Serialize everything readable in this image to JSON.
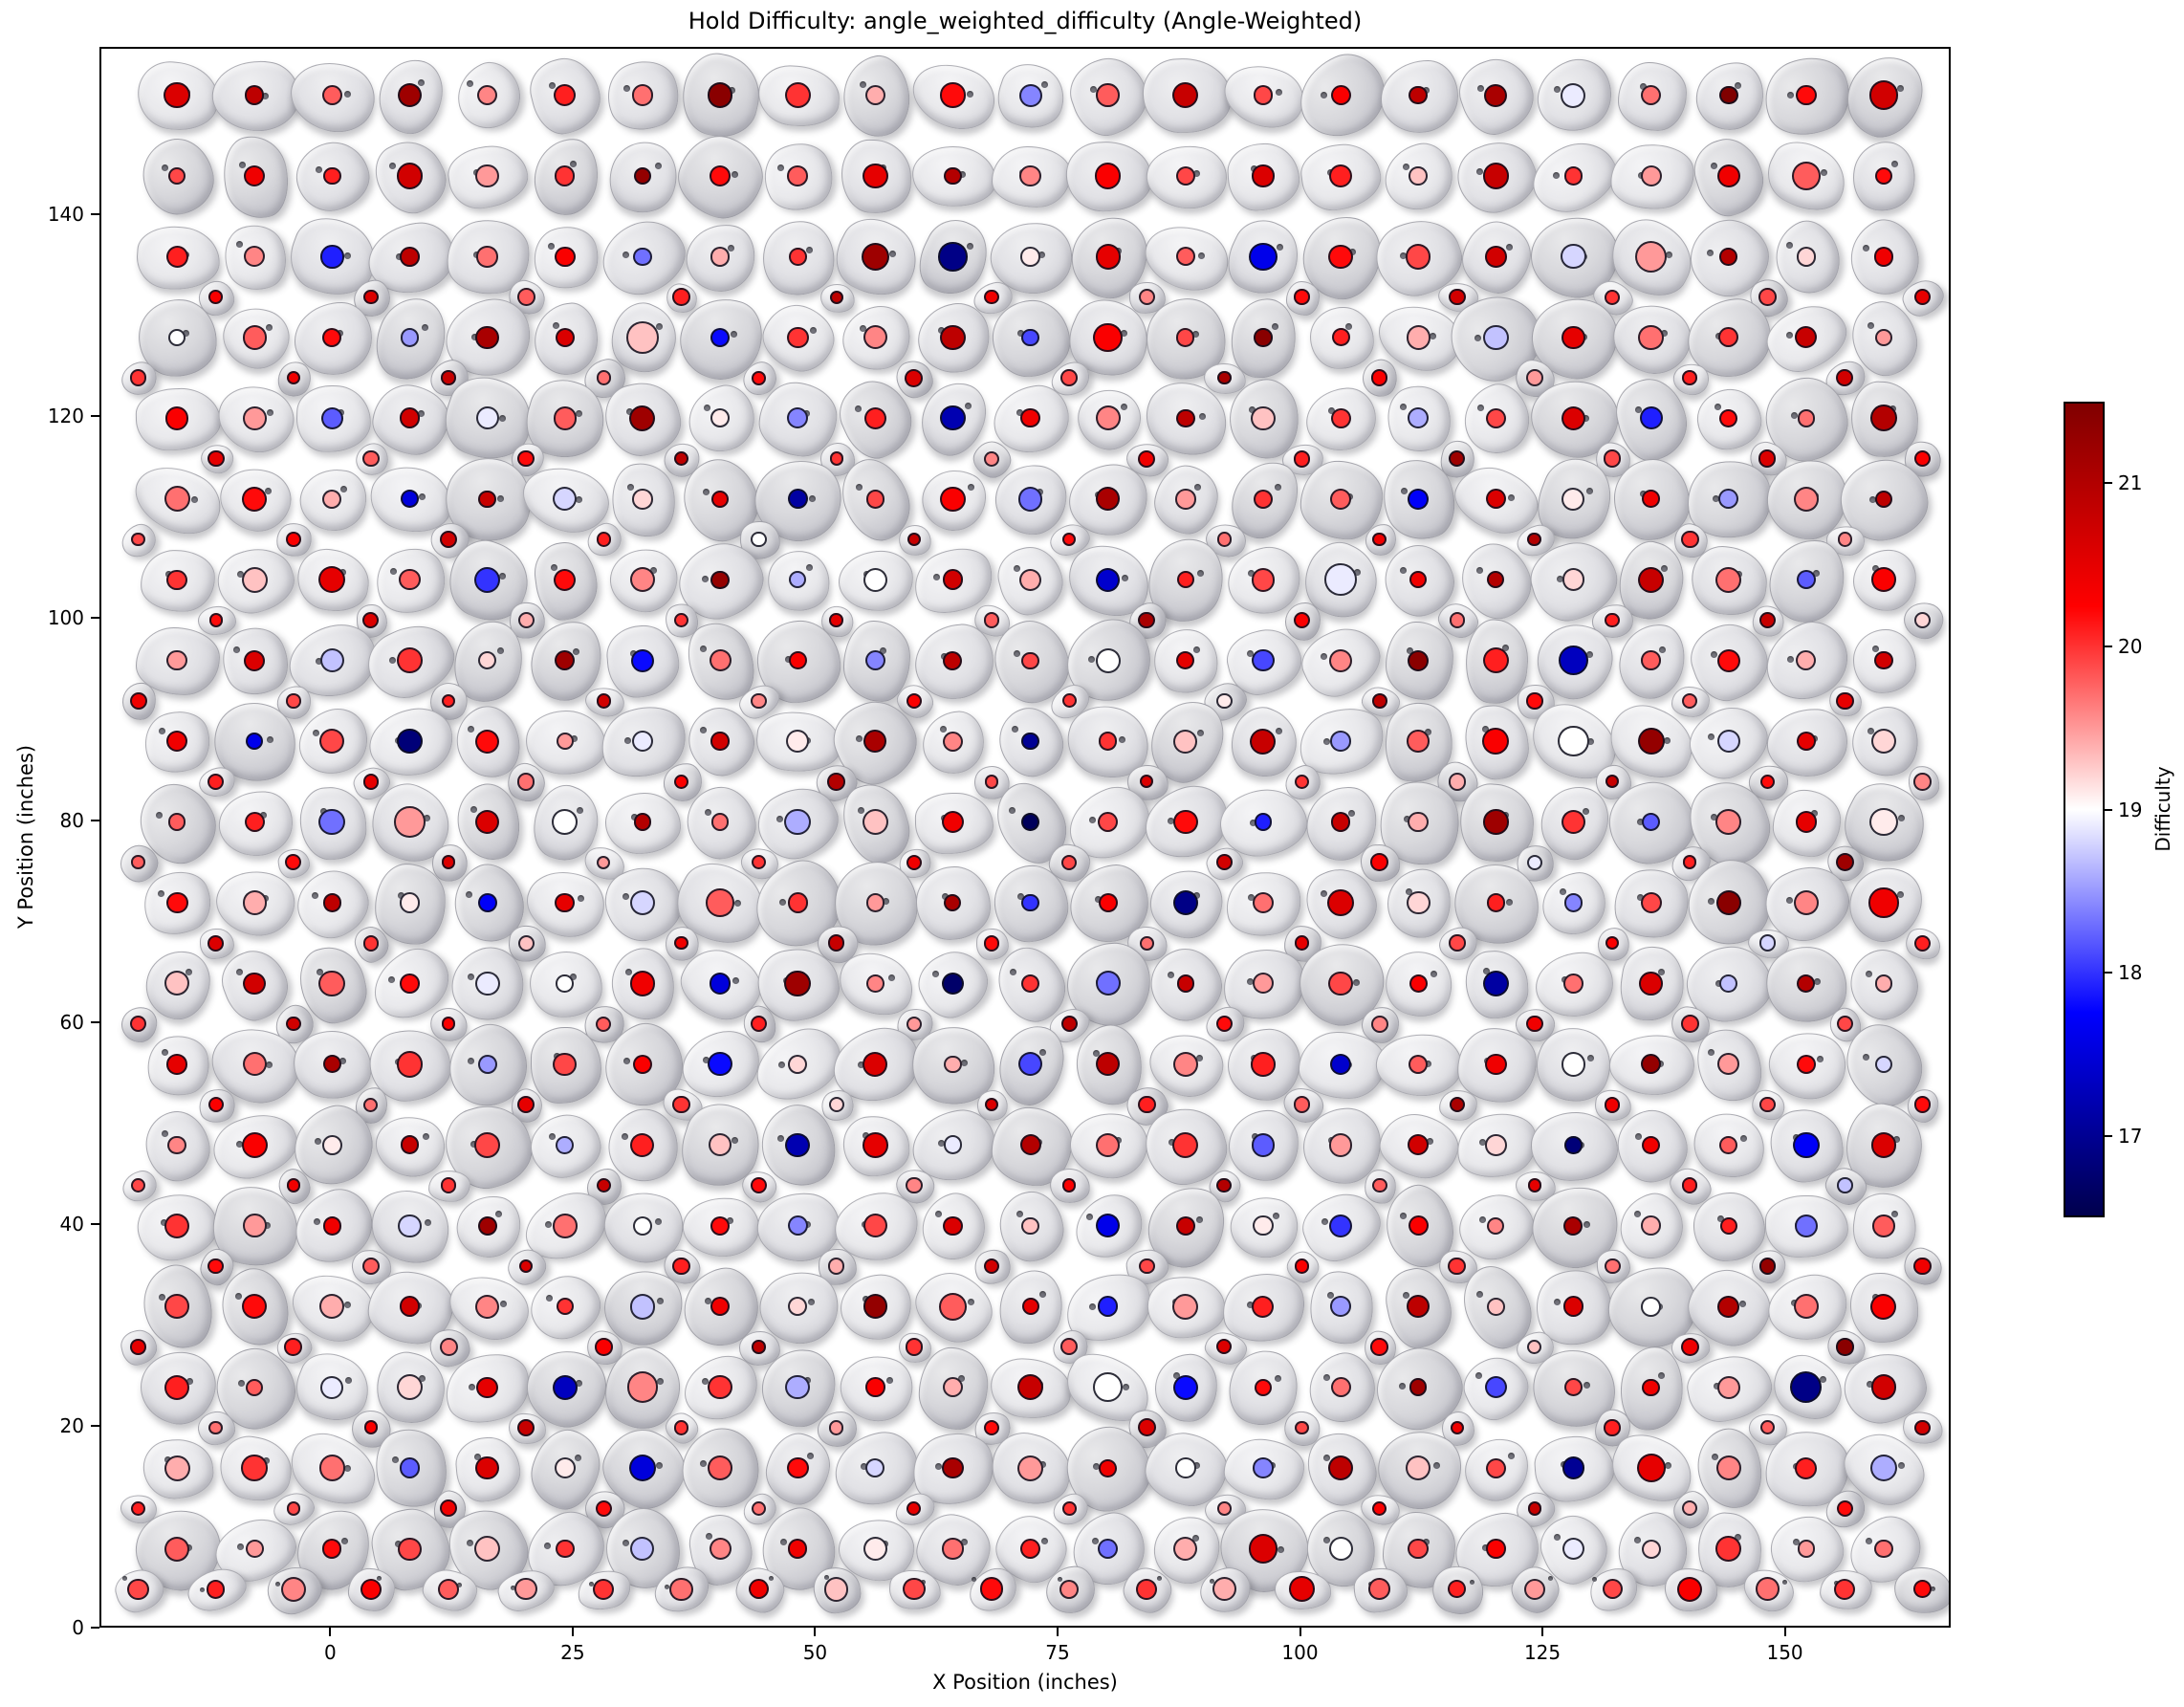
{
  "chart_data": {
    "type": "scatter",
    "title": "Hold Difficulty: angle_weighted_difficulty (Angle-Weighted)",
    "xlabel": "X Position (inches)",
    "ylabel": "Y Position (inches)",
    "xlim": [
      -23.8,
      167.1
    ],
    "ylim": [
      0,
      156.6
    ],
    "xticks": [
      0,
      25,
      50,
      75,
      100,
      125,
      150
    ],
    "yticks": [
      0,
      20,
      40,
      60,
      80,
      100,
      120,
      140
    ],
    "grid": false,
    "colorbar": {
      "label": "Difficulty",
      "vmin": 16.5,
      "vmax": 21.5,
      "ticks": [
        17,
        18,
        19,
        20,
        21
      ],
      "colormap": "seismic",
      "gradient_stops": [
        "#00004d",
        "#0000ff",
        "#ffffff",
        "#ff0000",
        "#800000"
      ]
    },
    "hold_rows": [
      {
        "y": 152,
        "x0": -16,
        "dx": 8,
        "kind": "large",
        "difficulty": [
          20.6,
          20.9,
          19.8,
          21.2,
          19.6,
          20.1,
          19.7,
          21.4,
          20.0,
          19.4,
          20.2,
          18.4,
          19.8,
          20.8,
          19.9,
          20.3,
          20.9,
          21.1,
          18.9,
          19.7,
          21.5,
          20.2,
          20.7
        ]
      },
      {
        "y": 144,
        "x0": -16,
        "dx": 8,
        "kind": "large",
        "difficulty": [
          19.9,
          20.4,
          20.1,
          20.7,
          19.5,
          20.0,
          21.3,
          20.2,
          19.8,
          20.5,
          21.0,
          19.6,
          20.3,
          19.9,
          20.6,
          20.1,
          19.3,
          20.8,
          20.0,
          19.5,
          20.4,
          19.8,
          20.2
        ]
      },
      {
        "y": 136,
        "x0": -16,
        "dx": 8,
        "kind": "large",
        "difficulty": [
          20.1,
          19.6,
          17.9,
          20.9,
          19.7,
          20.3,
          18.3,
          19.4,
          20.0,
          21.2,
          16.9,
          19.1,
          20.5,
          19.8,
          17.6,
          20.2,
          19.9,
          20.7,
          18.8,
          19.5,
          21.0,
          19.2,
          20.4
        ]
      },
      {
        "y": 132,
        "x0": -12,
        "dx": 16,
        "kind": "small",
        "difficulty": [
          20.3,
          20.6,
          19.8,
          20.1,
          20.9,
          20.4,
          19.6,
          20.2,
          20.7,
          20.0,
          19.9,
          20.5
        ]
      },
      {
        "y": 128,
        "x0": -16,
        "dx": 8,
        "kind": "large",
        "difficulty": [
          19.0,
          19.8,
          20.2,
          18.5,
          21.1,
          20.6,
          19.3,
          17.8,
          20.0,
          19.6,
          20.9,
          18.1,
          20.3,
          19.9,
          21.4,
          20.1,
          19.4,
          18.7,
          20.5,
          19.7,
          20.0,
          20.8,
          19.5
        ]
      },
      {
        "y": 124,
        "x0": -20,
        "dx": 16,
        "kind": "small",
        "difficulty": [
          20.0,
          20.4,
          20.8,
          19.7,
          20.2,
          20.6,
          19.9,
          21.1,
          20.3,
          19.5,
          20.1,
          20.7
        ]
      },
      {
        "y": 120,
        "x0": -16,
        "dx": 8,
        "kind": "large",
        "difficulty": [
          20.3,
          19.5,
          18.2,
          20.7,
          18.9,
          19.8,
          21.2,
          19.1,
          18.4,
          20.1,
          17.2,
          20.4,
          19.6,
          20.9,
          19.3,
          20.0,
          18.6,
          19.9,
          20.6,
          17.9,
          20.2,
          19.7,
          21.0
        ]
      },
      {
        "y": 116,
        "x0": -12,
        "dx": 16,
        "kind": "small",
        "difficulty": [
          20.5,
          19.8,
          20.2,
          20.9,
          20.0,
          19.6,
          20.4,
          20.1,
          21.2,
          19.9,
          20.6,
          20.3
        ]
      },
      {
        "y": 112,
        "x0": -16,
        "dx": 8,
        "kind": "large",
        "difficulty": [
          19.7,
          20.2,
          19.4,
          17.5,
          20.8,
          18.8,
          19.2,
          20.5,
          17.1,
          19.9,
          20.3,
          18.3,
          21.1,
          19.5,
          20.0,
          19.8,
          17.7,
          20.6,
          19.1,
          20.4,
          18.5,
          19.6,
          20.9
        ]
      },
      {
        "y": 108,
        "x0": -20,
        "dx": 16,
        "kind": "small",
        "difficulty": [
          19.9,
          20.3,
          20.7,
          20.1,
          19.0,
          20.8,
          20.2,
          19.7,
          20.4,
          21.0,
          20.0,
          19.6
        ]
      },
      {
        "y": 104,
        "x0": -16,
        "dx": 8,
        "kind": "large",
        "difficulty": [
          20.0,
          19.3,
          20.5,
          19.8,
          18.0,
          20.2,
          19.6,
          21.3,
          18.6,
          19.0,
          20.7,
          19.4,
          17.4,
          20.1,
          19.9,
          18.9,
          20.4,
          21.0,
          19.2,
          20.8,
          19.7,
          18.2,
          20.3
        ]
      },
      {
        "y": 100,
        "x0": -12,
        "dx": 16,
        "kind": "small",
        "difficulty": [
          20.2,
          20.6,
          19.4,
          20.0,
          20.5,
          19.8,
          21.1,
          20.3,
          19.7,
          20.1,
          20.8,
          19.2
        ]
      },
      {
        "y": 96,
        "x0": -16,
        "dx": 8,
        "kind": "large",
        "difficulty": [
          19.5,
          20.6,
          18.7,
          20.0,
          19.2,
          21.2,
          17.8,
          19.7,
          20.3,
          18.4,
          20.9,
          19.9,
          19.0,
          20.5,
          18.1,
          19.6,
          21.4,
          20.1,
          17.3,
          19.8,
          20.2,
          19.4,
          20.7
        ]
      },
      {
        "y": 92,
        "x0": -20,
        "dx": 16,
        "kind": "small",
        "difficulty": [
          20.4,
          19.9,
          20.1,
          20.7,
          19.6,
          20.3,
          20.0,
          19.1,
          20.9,
          20.2,
          19.8,
          20.5
        ]
      },
      {
        "y": 88,
        "x0": -16,
        "dx": 8,
        "kind": "large",
        "difficulty": [
          20.4,
          17.6,
          19.9,
          16.8,
          20.2,
          19.5,
          18.9,
          20.7,
          19.1,
          21.1,
          19.6,
          17.0,
          20.0,
          19.3,
          20.8,
          18.5,
          19.8,
          20.3,
          19.0,
          21.3,
          18.8,
          20.5,
          19.2
        ]
      },
      {
        "y": 84,
        "x0": -12,
        "dx": 16,
        "kind": "small",
        "difficulty": [
          20.1,
          20.5,
          19.7,
          20.3,
          21.0,
          19.9,
          20.6,
          20.0,
          19.4,
          20.8,
          20.2,
          19.6
        ]
      },
      {
        "y": 80,
        "x0": -16,
        "dx": 8,
        "kind": "large",
        "difficulty": [
          19.8,
          20.1,
          18.3,
          19.5,
          20.6,
          19.0,
          21.0,
          19.7,
          18.6,
          19.3,
          20.4,
          16.6,
          19.9,
          20.2,
          17.9,
          20.8,
          19.4,
          21.2,
          20.0,
          18.2,
          19.6,
          20.5,
          19.1
        ]
      },
      {
        "y": 76,
        "x0": -20,
        "dx": 16,
        "kind": "small",
        "difficulty": [
          19.8,
          20.2,
          20.6,
          19.5,
          20.0,
          20.4,
          19.9,
          20.7,
          20.3,
          18.9,
          20.1,
          21.2
        ]
      },
      {
        "y": 72,
        "x0": -16,
        "dx": 8,
        "kind": "large",
        "difficulty": [
          20.2,
          19.4,
          20.9,
          19.1,
          17.7,
          20.5,
          18.8,
          19.8,
          20.0,
          19.5,
          21.1,
          18.0,
          20.3,
          16.9,
          19.7,
          20.6,
          19.2,
          20.1,
          18.4,
          19.9,
          21.4,
          19.6,
          20.4
        ]
      },
      {
        "y": 68,
        "x0": -12,
        "dx": 16,
        "kind": "small",
        "difficulty": [
          20.6,
          20.0,
          19.3,
          20.4,
          20.8,
          20.2,
          19.7,
          20.5,
          19.9,
          20.3,
          18.8,
          20.1
        ]
      },
      {
        "y": 64,
        "x0": -16,
        "dx": 8,
        "kind": "large",
        "difficulty": [
          19.3,
          20.7,
          19.8,
          20.2,
          18.9,
          19.0,
          20.4,
          17.5,
          21.2,
          19.6,
          16.7,
          20.0,
          18.3,
          20.8,
          19.5,
          19.9,
          20.3,
          17.1,
          19.7,
          20.6,
          18.7,
          21.0,
          19.4
        ]
      },
      {
        "y": 60,
        "x0": -20,
        "dx": 16,
        "kind": "small",
        "difficulty": [
          20.0,
          20.7,
          20.3,
          19.8,
          20.1,
          19.5,
          20.9,
          20.2,
          19.6,
          20.4,
          20.0,
          19.9
        ]
      },
      {
        "y": 56,
        "x0": -16,
        "dx": 8,
        "kind": "large",
        "difficulty": [
          20.5,
          19.7,
          21.1,
          20.0,
          18.5,
          19.9,
          20.3,
          17.8,
          19.2,
          20.6,
          19.4,
          18.1,
          20.9,
          19.6,
          20.1,
          17.4,
          19.8,
          20.4,
          19.0,
          21.3,
          19.5,
          20.2,
          18.8
        ]
      },
      {
        "y": 52,
        "x0": -12,
        "dx": 16,
        "kind": "small",
        "difficulty": [
          20.3,
          19.7,
          20.5,
          20.0,
          19.2,
          20.6,
          20.1,
          19.8,
          21.1,
          20.4,
          19.9,
          20.2
        ]
      },
      {
        "y": 48,
        "x0": -16,
        "dx": 8,
        "kind": "large",
        "difficulty": [
          19.6,
          20.3,
          19.1,
          20.8,
          19.9,
          18.6,
          20.1,
          19.3,
          17.2,
          20.5,
          18.9,
          21.0,
          19.7,
          20.0,
          18.2,
          19.5,
          20.7,
          19.2,
          16.8,
          20.4,
          19.8,
          17.7,
          20.6
        ]
      },
      {
        "y": 44,
        "x0": -20,
        "dx": 16,
        "kind": "small",
        "difficulty": [
          19.9,
          20.4,
          20.0,
          20.8,
          20.2,
          19.6,
          20.3,
          21.0,
          19.8,
          20.5,
          20.1,
          18.7
        ]
      },
      {
        "y": 40,
        "x0": -16,
        "dx": 8,
        "kind": "large",
        "difficulty": [
          20.0,
          19.5,
          20.4,
          18.8,
          21.2,
          19.7,
          19.0,
          20.2,
          18.4,
          19.9,
          20.6,
          19.3,
          17.6,
          20.8,
          19.1,
          18.0,
          20.3,
          19.6,
          21.1,
          19.4,
          20.1,
          18.3,
          19.8
        ]
      },
      {
        "y": 36,
        "x0": -12,
        "dx": 16,
        "kind": "small",
        "difficulty": [
          20.2,
          19.8,
          20.6,
          20.1,
          19.4,
          20.7,
          19.9,
          20.3,
          20.0,
          19.7,
          21.3,
          20.4
        ]
      },
      {
        "y": 32,
        "x0": -16,
        "dx": 8,
        "kind": "large",
        "difficulty": [
          19.9,
          20.2,
          19.4,
          20.7,
          19.6,
          20.0,
          18.7,
          20.4,
          19.2,
          21.3,
          19.8,
          20.5,
          17.9,
          19.5,
          20.1,
          18.5,
          20.9,
          19.3,
          20.6,
          19.0,
          21.0,
          19.7,
          20.3
        ]
      },
      {
        "y": 28,
        "x0": -20,
        "dx": 16,
        "kind": "small",
        "difficulty": [
          20.5,
          20.1,
          19.6,
          20.3,
          20.9,
          20.0,
          19.8,
          20.6,
          20.2,
          19.3,
          20.4,
          21.4
        ]
      },
      {
        "y": 24,
        "x0": -16,
        "dx": 8,
        "kind": "large",
        "difficulty": [
          20.1,
          19.8,
          18.9,
          19.2,
          20.5,
          17.3,
          19.6,
          20.0,
          18.6,
          20.3,
          19.4,
          20.8,
          19.0,
          17.8,
          20.2,
          19.7,
          21.2,
          18.1,
          19.9,
          20.4,
          19.5,
          16.9,
          20.7
        ]
      },
      {
        "y": 20,
        "x0": -12,
        "dx": 16,
        "kind": "small",
        "difficulty": [
          19.7,
          20.3,
          20.8,
          20.0,
          19.5,
          20.2,
          20.6,
          19.9,
          20.4,
          20.1,
          19.8,
          20.7
        ]
      },
      {
        "y": 16,
        "x0": -16,
        "dx": 8,
        "kind": "large",
        "difficulty": [
          19.4,
          20.0,
          19.7,
          18.2,
          20.6,
          19.1,
          17.5,
          19.8,
          20.2,
          18.8,
          21.1,
          19.5,
          20.4,
          19.0,
          18.4,
          20.9,
          19.3,
          19.9,
          17.0,
          20.5,
          19.6,
          20.1,
          18.6
        ]
      },
      {
        "y": 12,
        "x0": -20,
        "dx": 16,
        "kind": "small",
        "difficulty": [
          20.1,
          19.9,
          20.4,
          20.2,
          19.7,
          20.5,
          20.0,
          19.6,
          20.3,
          20.8,
          19.4,
          20.2
        ]
      },
      {
        "y": 8,
        "x0": -16,
        "dx": 8,
        "kind": "large",
        "difficulty": [
          19.8,
          19.5,
          20.2,
          19.9,
          19.3,
          20.0,
          18.7,
          19.6,
          20.4,
          19.1,
          19.7,
          20.1,
          18.3,
          19.4,
          20.6,
          19.0,
          19.9,
          20.3,
          18.9,
          19.2,
          20.0,
          19.5,
          19.7
        ]
      },
      {
        "y": 4,
        "x0": -20,
        "dx": 8,
        "kind": "foot",
        "difficulty": [
          19.9,
          20.1,
          19.6,
          20.3,
          19.8,
          19.5,
          20.0,
          19.7,
          20.4,
          19.3,
          19.9,
          20.2,
          19.6,
          20.0,
          19.4,
          20.5,
          19.8,
          20.1,
          19.5,
          19.9,
          20.3,
          19.7,
          20.0,
          20.2
        ]
      }
    ]
  }
}
